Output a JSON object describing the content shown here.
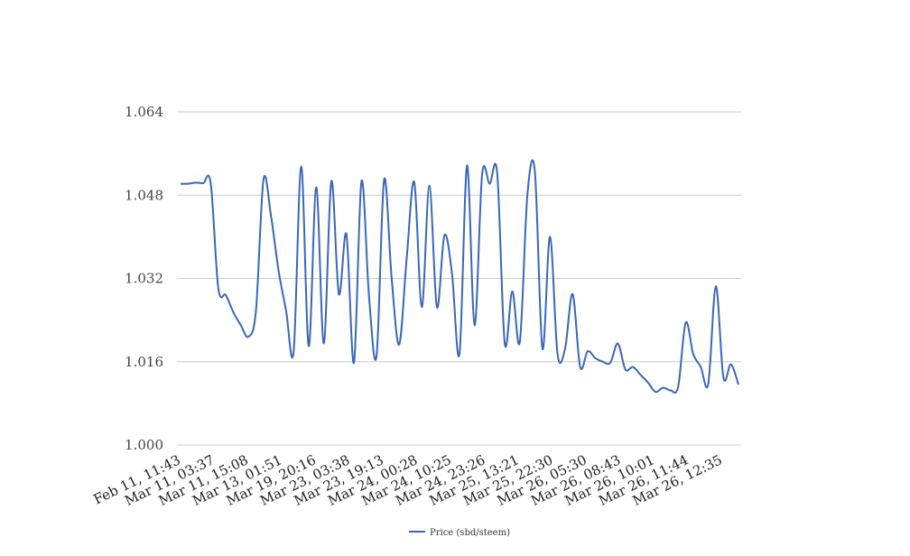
{
  "chart_data": {
    "type": "line",
    "title": "",
    "xlabel": "",
    "ylabel": "",
    "grid": true,
    "legend_position": "bottom-center",
    "ylim": [
      1.0,
      1.064
    ],
    "yticks": [
      "1.000",
      "1.016",
      "1.032",
      "1.048",
      "1.064"
    ],
    "xticks": [
      "Feb 11, 11:43",
      "Mar 11, 03:37",
      "Mar 11, 15:08",
      "Mar 13, 01:51",
      "Mar 19, 20:16",
      "Mar 23, 03:38",
      "Mar 23, 19:13",
      "Mar 24, 00:28",
      "Mar 24, 10:25",
      "Mar 24, 23:26",
      "Mar 25, 13:21",
      "Mar 25, 22:30",
      "Mar 26, 05:30",
      "Mar 26, 08:43",
      "Mar 26, 10:01",
      "Mar 26, 11:44",
      "Mar 26, 12:35"
    ],
    "colors": {
      "series": "#3a67b8",
      "grid": "#cccccc"
    },
    "series": [
      {
        "name": "Price (sbd/steem)",
        "values": [
          1.0502,
          1.0502,
          1.0504,
          1.0503,
          1.0503,
          1.0302,
          1.0288,
          1.0255,
          1.023,
          1.0208,
          1.0258,
          1.051,
          1.044,
          1.0335,
          1.0258,
          1.018,
          1.0535,
          1.019,
          1.0495,
          1.0195,
          1.0507,
          1.029,
          1.0405,
          1.0158,
          1.0507,
          1.0285,
          1.0172,
          1.051,
          1.032,
          1.0193,
          1.036,
          1.0505,
          1.0265,
          1.0498,
          1.0265,
          1.0403,
          1.033,
          1.0175,
          1.0537,
          1.023,
          1.052,
          1.0502,
          1.0522,
          1.0195,
          1.0295,
          1.0198,
          1.048,
          1.0525,
          1.0185,
          1.04,
          1.0175,
          1.0185,
          1.029,
          1.015,
          1.018,
          1.0167,
          1.016,
          1.0158,
          1.0195,
          1.0145,
          1.015,
          1.0135,
          1.012,
          1.0102,
          1.011,
          1.0105,
          1.0112,
          1.0235,
          1.0175,
          1.015,
          1.0118,
          1.0305,
          1.013,
          1.0155,
          1.0116
        ]
      }
    ]
  }
}
